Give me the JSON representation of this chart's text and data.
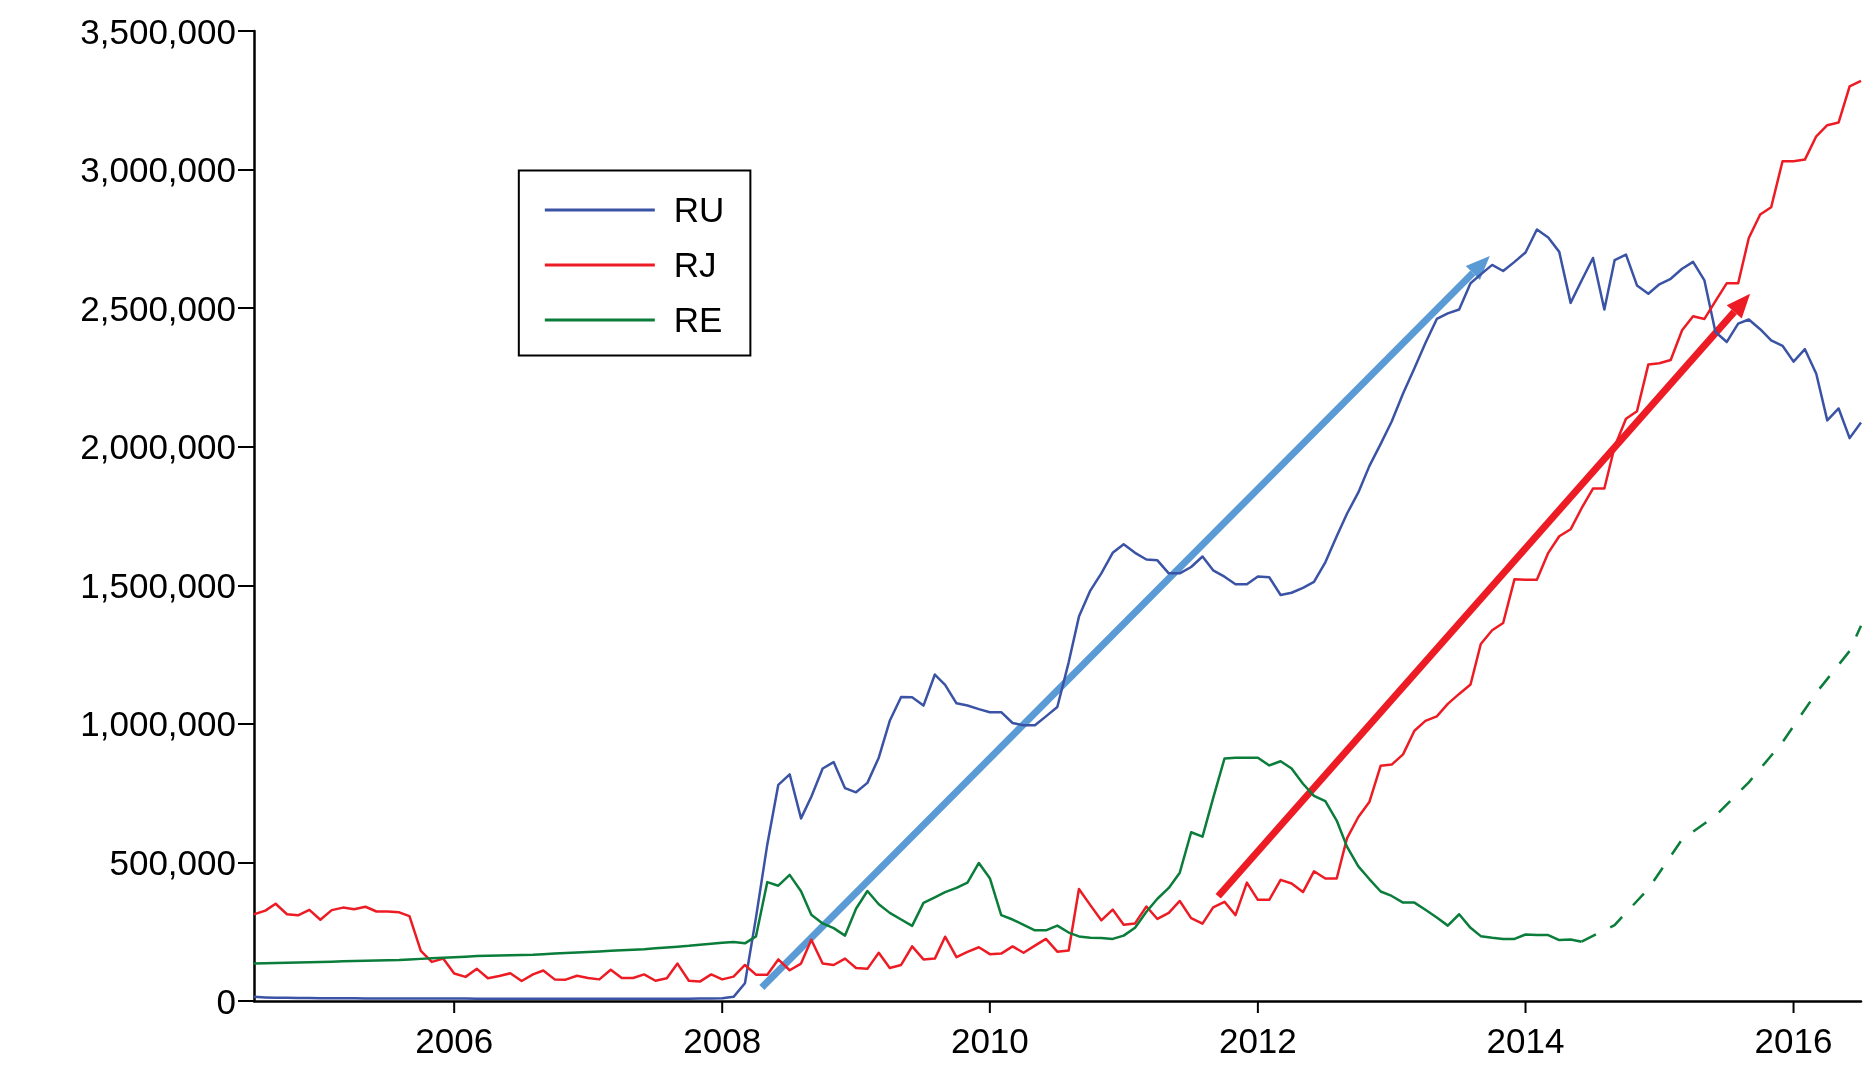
{
  "chart_data": {
    "type": "line",
    "x": [
      "2005-01",
      "2005-02",
      "2005-03",
      "2005-04",
      "2005-05",
      "2005-06",
      "2005-07",
      "2005-08",
      "2005-09",
      "2005-10",
      "2005-11",
      "2005-12",
      "2006-01",
      "2006-02",
      "2006-03",
      "2006-04",
      "2006-05",
      "2006-06",
      "2006-07",
      "2006-08",
      "2006-09",
      "2006-10",
      "2006-11",
      "2006-12",
      "2007-01",
      "2007-02",
      "2007-03",
      "2007-04",
      "2007-05",
      "2007-06",
      "2007-07",
      "2007-08",
      "2007-09",
      "2007-10",
      "2007-11",
      "2007-12",
      "2008-01",
      "2008-02",
      "2008-03",
      "2008-04",
      "2008-05",
      "2008-06",
      "2008-07",
      "2008-08",
      "2008-09",
      "2008-10",
      "2008-11",
      "2008-12",
      "2009-01",
      "2009-02",
      "2009-03",
      "2009-04",
      "2009-05",
      "2009-06",
      "2009-07",
      "2009-08",
      "2009-09",
      "2009-10",
      "2009-11",
      "2009-12",
      "2010-01",
      "2010-02",
      "2010-03",
      "2010-04",
      "2010-05",
      "2010-06",
      "2010-07",
      "2010-08",
      "2010-09",
      "2010-10",
      "2010-11",
      "2010-12",
      "2011-01",
      "2011-02",
      "2011-03",
      "2011-04",
      "2011-05",
      "2011-06",
      "2011-07",
      "2011-08",
      "2011-09",
      "2011-10",
      "2011-11",
      "2011-12",
      "2012-01",
      "2012-02",
      "2012-03",
      "2012-04",
      "2012-05",
      "2012-06",
      "2012-07",
      "2012-08",
      "2012-09",
      "2012-10",
      "2012-11",
      "2012-12",
      "2013-01",
      "2013-02",
      "2013-03",
      "2013-04",
      "2013-05",
      "2013-06",
      "2013-07",
      "2013-08",
      "2013-09",
      "2013-10",
      "2013-11",
      "2013-12",
      "2014-01",
      "2014-02",
      "2014-03",
      "2014-04",
      "2014-05",
      "2014-06",
      "2014-07",
      "2014-08",
      "2014-09",
      "2014-10",
      "2014-11",
      "2014-12",
      "2015-01",
      "2015-02",
      "2015-03",
      "2015-04",
      "2015-05",
      "2015-06",
      "2015-07",
      "2015-08",
      "2015-09",
      "2015-10",
      "2015-11",
      "2015-12",
      "2016-01",
      "2016-02",
      "2016-03",
      "2016-04",
      "2016-05",
      "2016-06",
      "2016-07",
      "2016-08",
      "2016-09",
      "2016-10",
      "2016-11",
      "2016-12",
      "2017-01"
    ],
    "series": [
      {
        "name": "RU",
        "color": "#3a53a4",
        "values": [
          15000,
          13000,
          12000,
          12000,
          11000,
          11000,
          10000,
          10000,
          10000,
          10000,
          9000,
          9000,
          9000,
          9000,
          9000,
          9000,
          9000,
          9000,
          9000,
          9000,
          8000,
          8000,
          8000,
          8000,
          8000,
          8000,
          8000,
          8000,
          8000,
          8000,
          8000,
          8000,
          8000,
          8000,
          8000,
          8000,
          8000,
          8000,
          8000,
          8000,
          9000,
          9000,
          10000,
          15000,
          64000,
          300000,
          565000,
          780000,
          818000,
          659000,
          737000,
          839000,
          862000,
          768000,
          753000,
          787000,
          878000,
          1011000,
          1097000,
          1096000,
          1066000,
          1178000,
          1141000,
          1074000,
          1066000,
          1053000,
          1042000,
          1042000,
          1003000,
          995000,
          995000,
          1027000,
          1061000,
          1222000,
          1387000,
          1481000,
          1543000,
          1617000,
          1648000,
          1617000,
          1593000,
          1590000,
          1543000,
          1543000,
          1566000,
          1604000,
          1554000,
          1531000,
          1504000,
          1504000,
          1532000,
          1529000,
          1465000,
          1473000,
          1491000,
          1512000,
          1583000,
          1677000,
          1758000,
          1835000,
          1930000,
          2010000,
          2091000,
          2192000,
          2283000,
          2374000,
          2461000,
          2481000,
          2495000,
          2590000,
          2622000,
          2656000,
          2634000,
          2667000,
          2701000,
          2784000,
          2755000,
          2703000,
          2519000,
          2600000,
          2681000,
          2495000,
          2673000,
          2693000,
          2582000,
          2552000,
          2586000,
          2606000,
          2642000,
          2667000,
          2600000,
          2414000,
          2378000,
          2444000,
          2459000,
          2424000,
          2384000,
          2364000,
          2307000,
          2352000,
          2263000,
          2095000,
          2138000,
          2031000,
          2087000
        ]
      },
      {
        "name": "RJ",
        "color": "#ed1c24",
        "values": [
          313000,
          326000,
          351000,
          313000,
          309000,
          329000,
          293000,
          328000,
          337000,
          331000,
          340000,
          323000,
          323000,
          320000,
          306000,
          181000,
          141000,
          153000,
          99000,
          87000,
          116000,
          82000,
          90000,
          100000,
          72000,
          96000,
          110000,
          78000,
          77000,
          91000,
          83000,
          78000,
          113000,
          83000,
          83000,
          96000,
          73000,
          82000,
          135000,
          73000,
          70000,
          96000,
          78000,
          88000,
          130000,
          95000,
          95000,
          150000,
          111000,
          135000,
          221000,
          135000,
          130000,
          153000,
          119000,
          116000,
          174000,
          119000,
          130000,
          197000,
          150000,
          153000,
          232000,
          158000,
          177000,
          194000,
          169000,
          171000,
          197000,
          174000,
          200000,
          224000,
          178000,
          182000,
          404000,
          346000,
          291000,
          330000,
          275000,
          280000,
          341000,
          296000,
          318000,
          361000,
          299000,
          279000,
          338000,
          358000,
          310000,
          427000,
          365000,
          365000,
          437000,
          424000,
          393000,
          468000,
          442000,
          442000,
          587000,
          664000,
          718000,
          849000,
          853000,
          890000,
          975000,
          1011000,
          1027000,
          1072000,
          1108000,
          1142000,
          1288000,
          1338000,
          1364000,
          1522000,
          1520000,
          1520000,
          1617000,
          1677000,
          1702000,
          1778000,
          1849000,
          1849000,
          2000000,
          2101000,
          2128000,
          2297000,
          2301000,
          2313000,
          2420000,
          2471000,
          2461000,
          2525000,
          2590000,
          2590000,
          2753000,
          2838000,
          2864000,
          3030000,
          3030000,
          3036000,
          3120000,
          3160000,
          3170000,
          3300000,
          3320000
        ]
      },
      {
        "name": "RE",
        "color": "#0a7d3b",
        "values": [
          135000,
          136000,
          137000,
          138000,
          139000,
          140000,
          141000,
          142000,
          143000,
          144000,
          145000,
          146000,
          147000,
          148000,
          150000,
          152000,
          154000,
          156000,
          158000,
          160000,
          162000,
          163000,
          164000,
          165000,
          166000,
          167000,
          169000,
          171000,
          173000,
          175000,
          177000,
          179000,
          181000,
          183000,
          185000,
          187000,
          190000,
          193000,
          196000,
          199000,
          203000,
          207000,
          210000,
          213000,
          208000,
          233000,
          429000,
          416000,
          455000,
          396000,
          311000,
          280000,
          263000,
          236000,
          333000,
          397000,
          349000,
          318000,
          294000,
          271000,
          354000,
          374000,
          393000,
          408000,
          427000,
          498000,
          443000,
          310000,
          294000,
          275000,
          255000,
          255000,
          272000,
          247000,
          233000,
          228000,
          227000,
          224000,
          236000,
          264000,
          322000,
          369000,
          408000,
          463000,
          609000,
          593000,
          732000,
          875000,
          878000,
          878000,
          878000,
          850000,
          865000,
          839000,
          784000,
          740000,
          721000,
          651000,
          557000,
          486000,
          440000,
          395000,
          379000,
          355000,
          355000,
          329000,
          301000,
          272000,
          313000,
          264000,
          234000,
          228000,
          224000,
          224000,
          240000,
          238000,
          238000,
          220000,
          222000,
          214000,
          null,
          null,
          null,
          null,
          null,
          null,
          null,
          null,
          null,
          null,
          null,
          null,
          null,
          null,
          null,
          null,
          null,
          null,
          null,
          null,
          null,
          null,
          null,
          null,
          null
        ]
      },
      {
        "color": "#0a7d3b",
        "line_style": "dashed",
        "x": [
          "2014-12",
          "2015-03",
          "2015-06",
          "2015-09",
          "2015-12",
          "2016-03",
          "2016-06",
          "2016-09",
          "2016-12",
          "2017-01"
        ],
        "values": [
          214000,
          274000,
          405000,
          583000,
          668000,
          789000,
          934000,
          1112000,
          1263000,
          1354000
        ]
      }
    ],
    "xlim": [
      "2005-01",
      "2017-01"
    ],
    "xticks": [
      {
        "value": "2006-07",
        "label": "2006"
      },
      {
        "value": "2008-07",
        "label": "2008"
      },
      {
        "value": "2010-07",
        "label": "2010"
      },
      {
        "value": "2012-07",
        "label": "2012"
      },
      {
        "value": "2014-07",
        "label": "2014"
      },
      {
        "value": "2016-07",
        "label": "2016"
      }
    ],
    "ylim": [
      0,
      3500000
    ],
    "yticks": [
      0,
      {
        "value": 500000,
        "label": "500,000"
      },
      {
        "value": 1000000,
        "label": "1,000,000"
      },
      {
        "value": 1500000,
        "label": "1,500,000"
      },
      {
        "value": 2000000,
        "label": "2,000,000"
      },
      {
        "value": 2500000,
        "label": "2,500,000"
      },
      {
        "value": 3000000,
        "label": "3,000,000"
      },
      {
        "value": 3500000,
        "label": "3,500,000"
      }
    ],
    "grid": false,
    "legend": "top left",
    "marker": "none",
    "line_style": "solid"
  }
}
